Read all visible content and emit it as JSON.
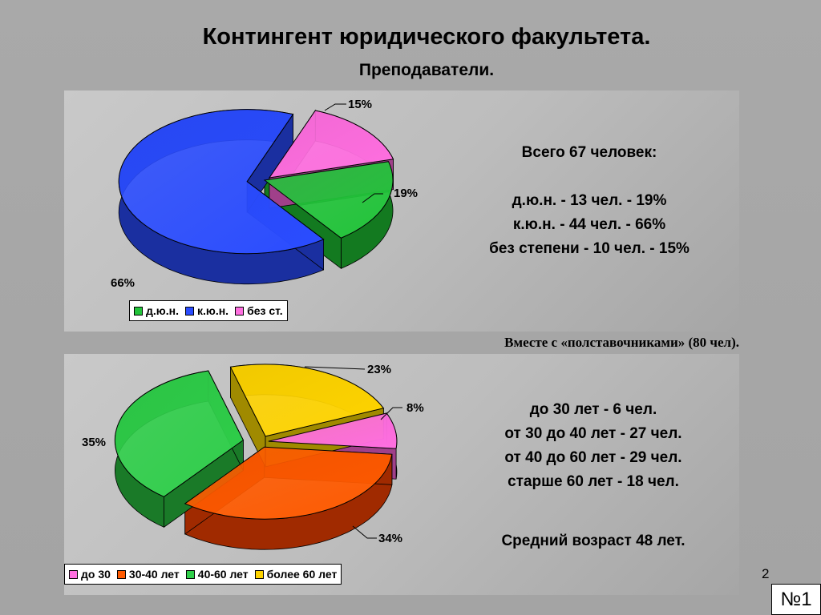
{
  "title": "Контингент юридического факультета.",
  "subtitle": "Преподаватели.",
  "note": "Вместе с «полставочниками» (80 чел).",
  "page_number": "2",
  "slide_badge": "№1",
  "top_info": {
    "line1": "Всего 67 человек:",
    "line2": "д.ю.н. - 13 чел. - 19%",
    "line3": "к.ю.н. - 44 чел. - 66%",
    "line4": "без степени - 10 чел. - 15%"
  },
  "bottom_info": {
    "line1": "до 30 лет - 6 чел.",
    "line2": "от 30 до 40 лет - 27 чел.",
    "line3": "от 40 до 60 лет - 29 чел.",
    "line4": "старше 60 лет - 18 чел.",
    "line5": "Средний возраст 48 лет."
  },
  "chart_data": [
    {
      "type": "pie",
      "categories": [
        "д.ю.н.",
        "к.ю.н.",
        "без ст."
      ],
      "values": [
        19,
        66,
        15
      ],
      "labels": [
        "19%",
        "66%",
        "15%"
      ],
      "colors": [
        "#22c43a",
        "#2a4cff",
        "#ff6fe0"
      ],
      "side_colors": [
        "#137a20",
        "#1a2fa0",
        "#a0408a"
      ],
      "legend": [
        "д.ю.н.",
        "к.ю.н.",
        "без ст."
      ],
      "exploded": "к.ю.н.",
      "legend_placement": "bottom-left"
    },
    {
      "type": "pie",
      "categories": [
        "до 30",
        "30-40 лет",
        "40-60 лет",
        "более 60 лет"
      ],
      "values": [
        8,
        34,
        35,
        23
      ],
      "labels": [
        "8%",
        "34%",
        "35%",
        "23%"
      ],
      "colors": [
        "#ff6fe0",
        "#ff5a00",
        "#2fcf4a",
        "#ffd400"
      ],
      "side_colors": [
        "#a0408a",
        "#a02a00",
        "#1a7a28",
        "#a08a00"
      ],
      "legend": [
        "до 30",
        "30-40 лет",
        "40-60 лет",
        "более 60 лет"
      ],
      "exploded": "all",
      "legend_placement": "bottom-left"
    }
  ]
}
